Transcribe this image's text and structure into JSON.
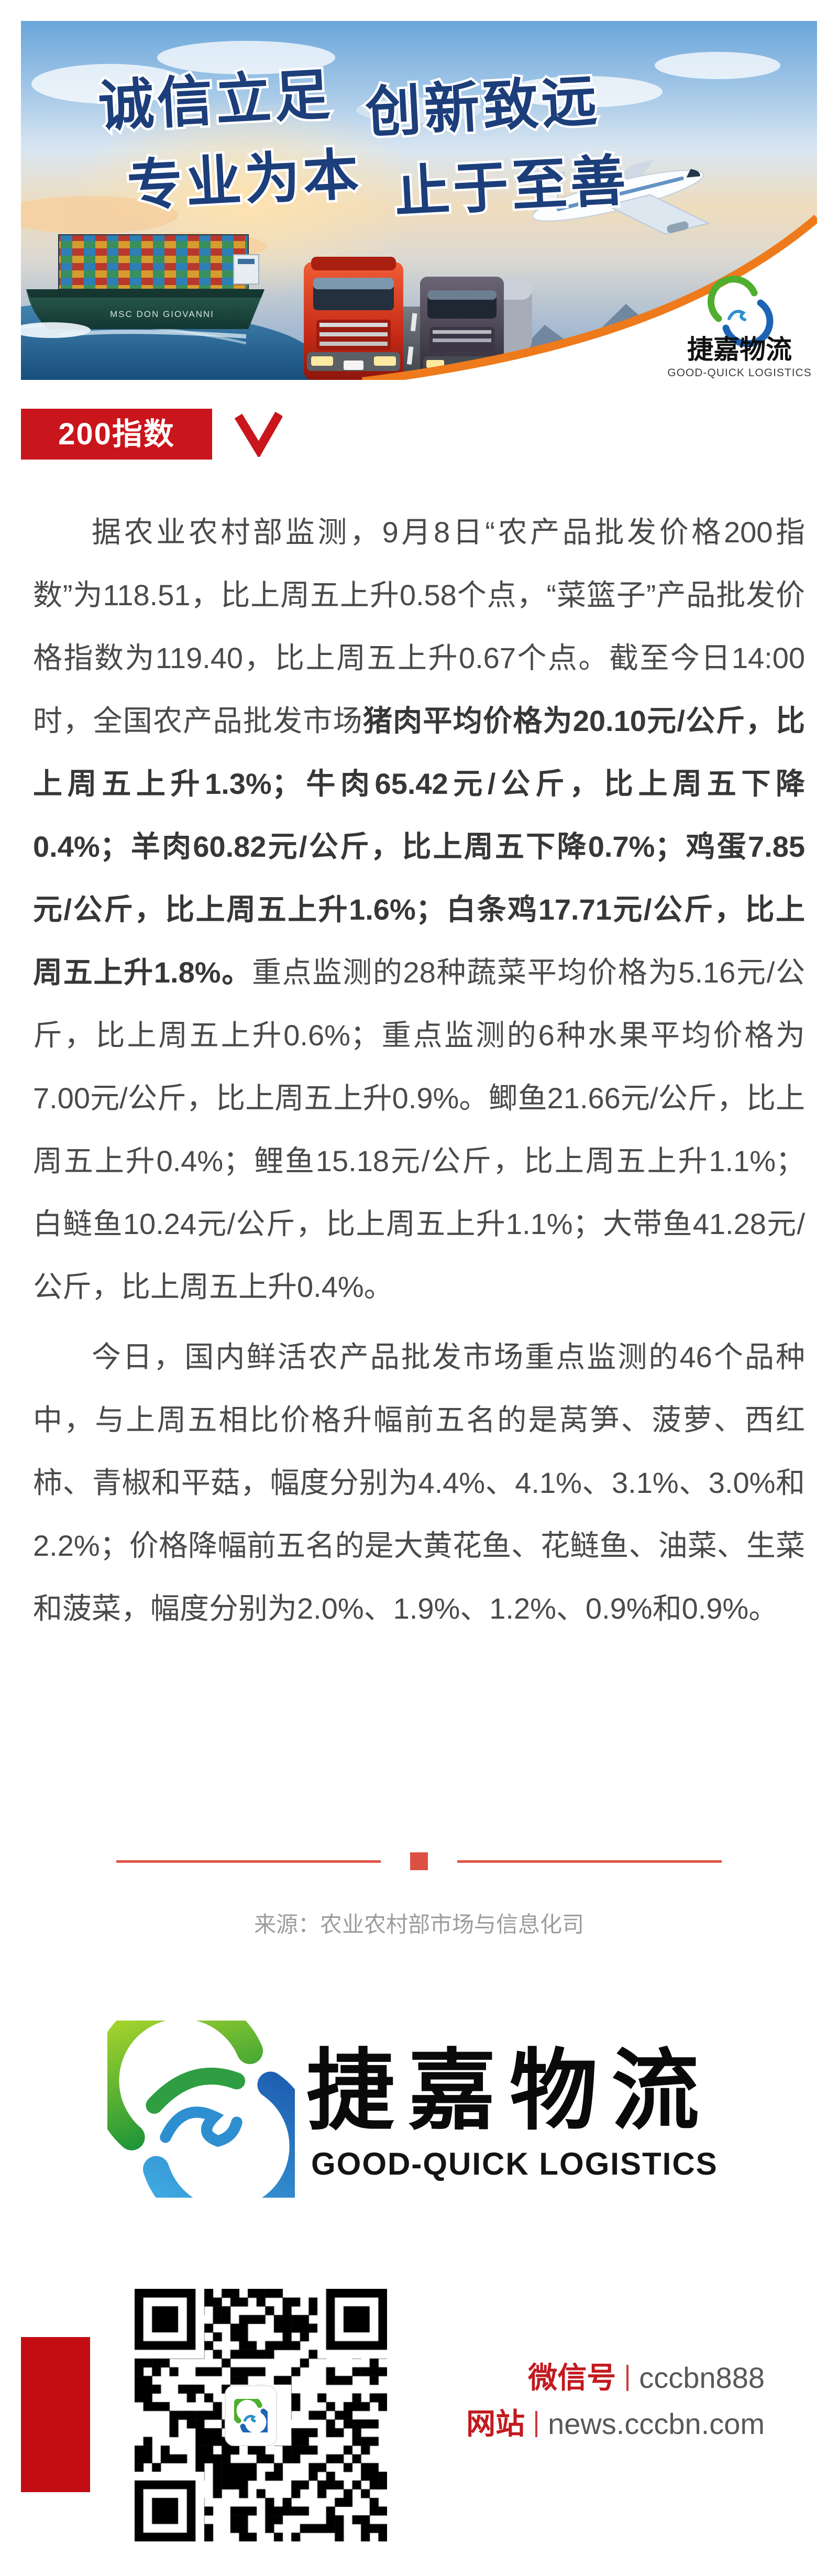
{
  "banner": {
    "slogan_line1_a": "诚信立足",
    "slogan_line1_b": "创新致远",
    "slogan_line2_a": "专业为本",
    "slogan_line2_b": "止于至善",
    "ship_name": "MSC DON GIOVANNI",
    "logo_cn": "捷嘉物流",
    "logo_en": "GOOD-QUICK LOGISTICS"
  },
  "badge": {
    "label": "200指数"
  },
  "article": {
    "p1_pre": "据农业农村部监测，9月8日“农产品批发价格200指数”为118.51，比上周五上升0.58个点，“菜篮子”产品批发价格指数为119.40，比上周五上升0.67个点。截至今日14:00时，全国农产品批发市场",
    "p1_bold": "猪肉平均价格为20.10元/公斤，比上周五上升1.3%；牛肉65.42元/公斤，比上周五下降0.4%；羊肉60.82元/公斤，比上周五下降0.7%；鸡蛋7.85元/公斤，比上周五上升1.6%；白条鸡17.71元/公斤，比上周五上升1.8%。",
    "p1_post": "重点监测的28种蔬菜平均价格为5.16元/公斤，比上周五上升0.6%；重点监测的6种水果平均价格为7.00元/公斤，比上周五上升0.9%。鲫鱼21.66元/公斤，比上周五上升0.4%；鲤鱼15.18元/公斤，比上周五上升1.1%；白鲢鱼10.24元/公斤，比上周五上升1.1%；大带鱼41.28元/公斤，比上周五上升0.4%。",
    "p2": "今日，国内鲜活农产品批发市场重点监测的46个品种中，与上周五相比价格升幅前五名的是莴笋、菠萝、西红柿、青椒和平菇，幅度分别为4.4%、4.1%、3.1%、3.0%和2.2%；价格降幅前五名的是大黄花鱼、花鲢鱼、油菜、生菜和菠菜，幅度分别为2.0%、1.9%、1.2%、0.9%和0.9%。"
  },
  "source": {
    "text": "来源：农业农村部市场与信息化司"
  },
  "brand": {
    "logo_cn": "捷嘉物流",
    "logo_en": "GOOD-QUICK LOGISTICS"
  },
  "contact": {
    "wechat_label": "微信号",
    "wechat_value": "cccbn888",
    "site_label": "网站",
    "site_value": "news.cccbn.com"
  },
  "colors": {
    "badge_red": "#c9151c",
    "divider_coral": "#e0564a",
    "footer_bar_red": "#c20d12",
    "contact_label_red": "#c2191f",
    "body_text": "#4a4a4a",
    "source_gray": "#9c9c9c",
    "banner_orange": "#ee7a1c",
    "slogan_blue": "#1c3e7a",
    "logo_green": "#4fae2e",
    "logo_blue": "#1d64b5"
  }
}
